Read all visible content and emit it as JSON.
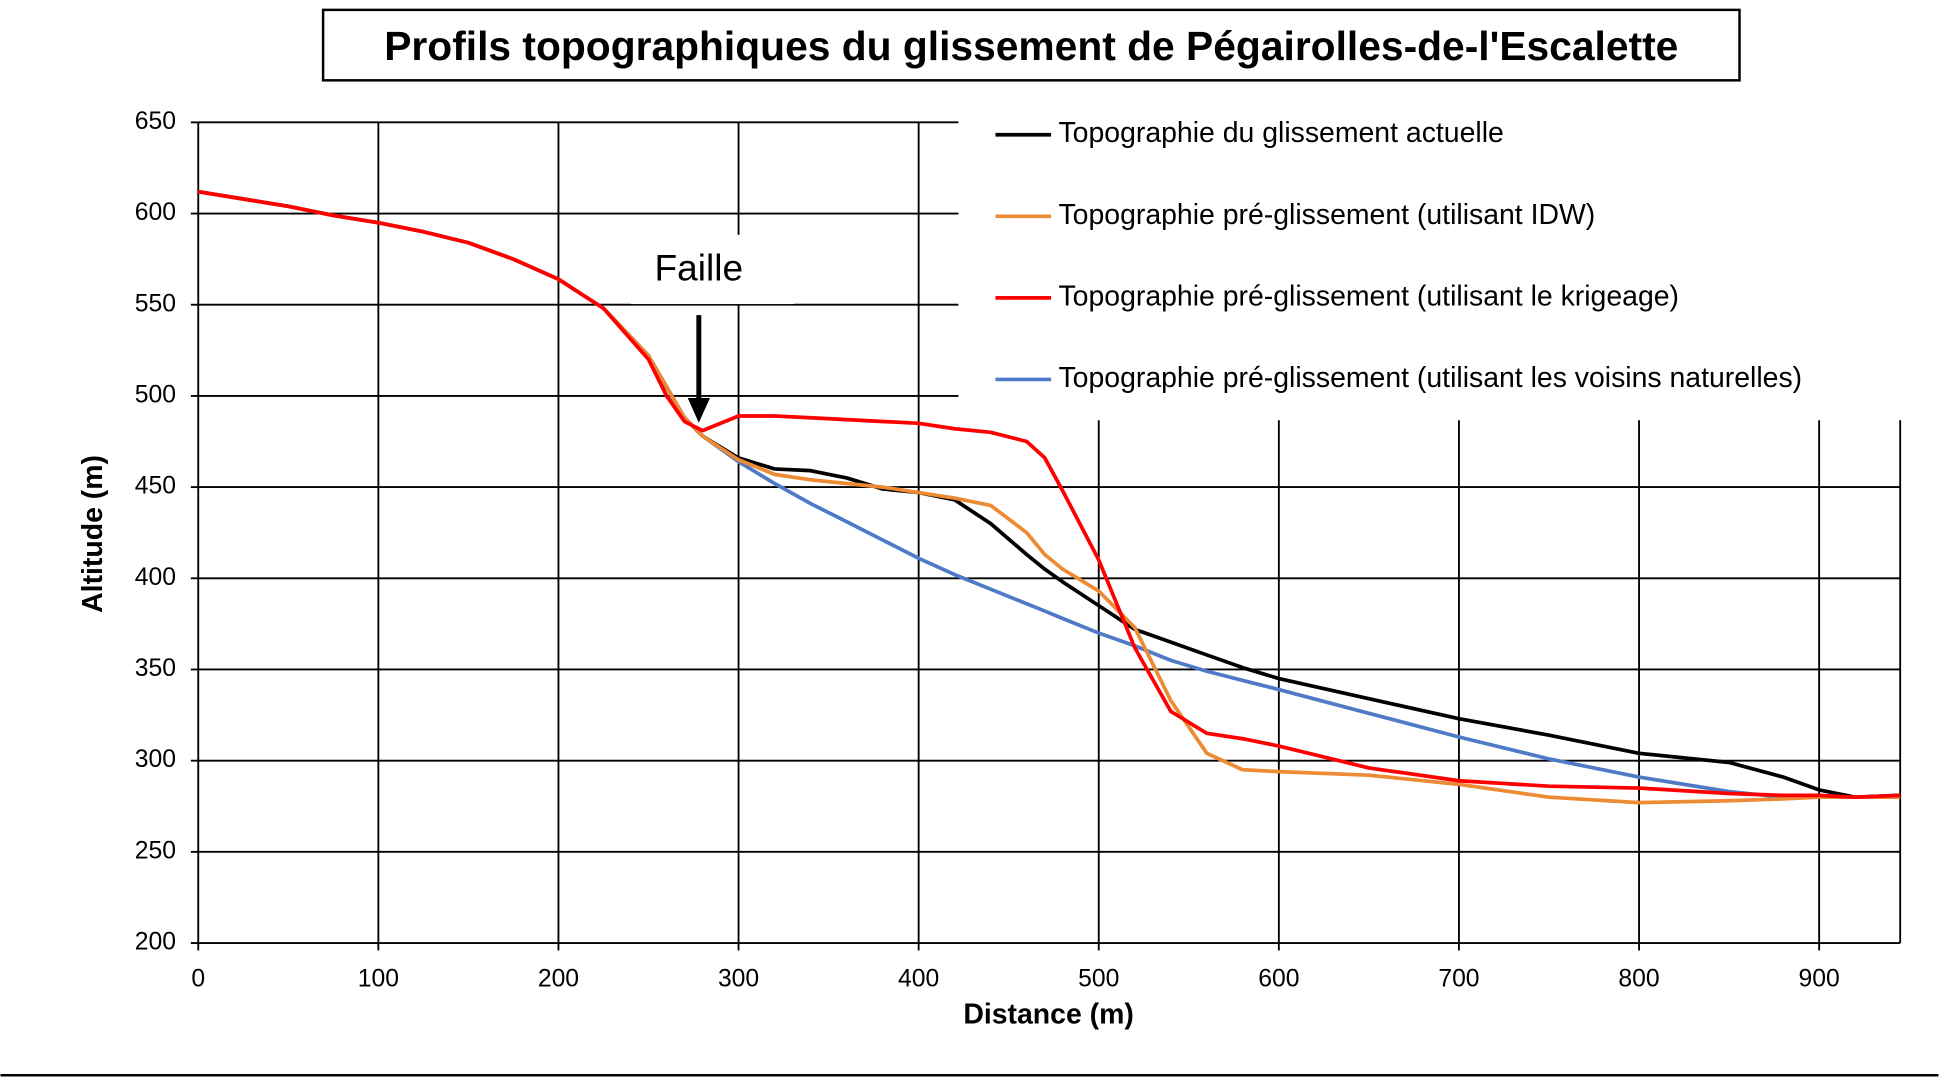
{
  "chart_data": {
    "type": "line",
    "title": "Profils topographiques du glissement de Pégairolles-de-l'Escalette",
    "xlabel": "Distance (m)",
    "ylabel": "Altitude (m)",
    "annotations": [
      "Faille"
    ],
    "x": [
      0,
      25,
      50,
      75,
      100,
      125,
      150,
      175,
      200,
      225,
      250,
      260,
      270,
      280,
      300,
      320,
      340,
      360,
      380,
      400,
      420,
      440,
      460,
      470,
      480,
      500,
      520,
      540,
      560,
      580,
      600,
      650,
      700,
      750,
      800,
      850,
      880,
      900,
      920,
      945
    ],
    "series": [
      {
        "name": "Topographie du glissement actuelle",
        "color": "#000000",
        "values": [
          612,
          608,
          604,
          599,
          595,
          590,
          584,
          575,
          564,
          548,
          522,
          505,
          488,
          478,
          466,
          460,
          459,
          455,
          449,
          447,
          443,
          430,
          413,
          405,
          398,
          385,
          372,
          365,
          358,
          351,
          345,
          334,
          323,
          314,
          304,
          299,
          291,
          284,
          280,
          281
        ]
      },
      {
        "name": "Topographie pré-glissement (utilisant IDW)",
        "color": "#ed8b35",
        "values": [
          612,
          608,
          604,
          599,
          595,
          590,
          584,
          575,
          564,
          548,
          522,
          505,
          488,
          478,
          465,
          457,
          454,
          452,
          450,
          447,
          444,
          440,
          425,
          413,
          405,
          393,
          373,
          333,
          304,
          295,
          294,
          292,
          287,
          280,
          277,
          278,
          279,
          280,
          280,
          280
        ]
      },
      {
        "name": "Topographie pré-glissement (utilisant le krigeage)",
        "color": "#ff0000",
        "values": [
          612,
          608,
          604,
          599,
          595,
          590,
          584,
          575,
          564,
          548,
          520,
          500,
          486,
          481,
          489,
          489,
          488,
          487,
          486,
          485,
          482,
          480,
          475,
          466,
          448,
          410,
          362,
          327,
          315,
          312,
          308,
          296,
          289,
          286,
          285,
          282,
          281,
          281,
          280,
          281
        ]
      },
      {
        "name": "Topographie pré-glissement (utilisant les voisins naturelles)",
        "color": "#4f7ac7",
        "values": [
          612,
          608,
          604,
          599,
          595,
          590,
          584,
          575,
          564,
          548,
          522,
          500,
          488,
          478,
          464,
          452,
          441,
          431,
          421,
          411,
          402,
          394,
          386,
          382,
          378,
          370,
          363,
          355,
          349,
          344,
          339,
          326,
          313,
          301,
          291,
          283,
          280,
          280,
          280,
          281
        ]
      }
    ],
    "xlim": [
      0,
      945
    ],
    "xticks": [
      0,
      100,
      200,
      300,
      400,
      500,
      600,
      700,
      800,
      900
    ],
    "ylim": [
      200,
      650
    ],
    "yticks": [
      200,
      250,
      300,
      350,
      400,
      450,
      500,
      550,
      600,
      650
    ],
    "grid": true,
    "legend": "upper right"
  }
}
